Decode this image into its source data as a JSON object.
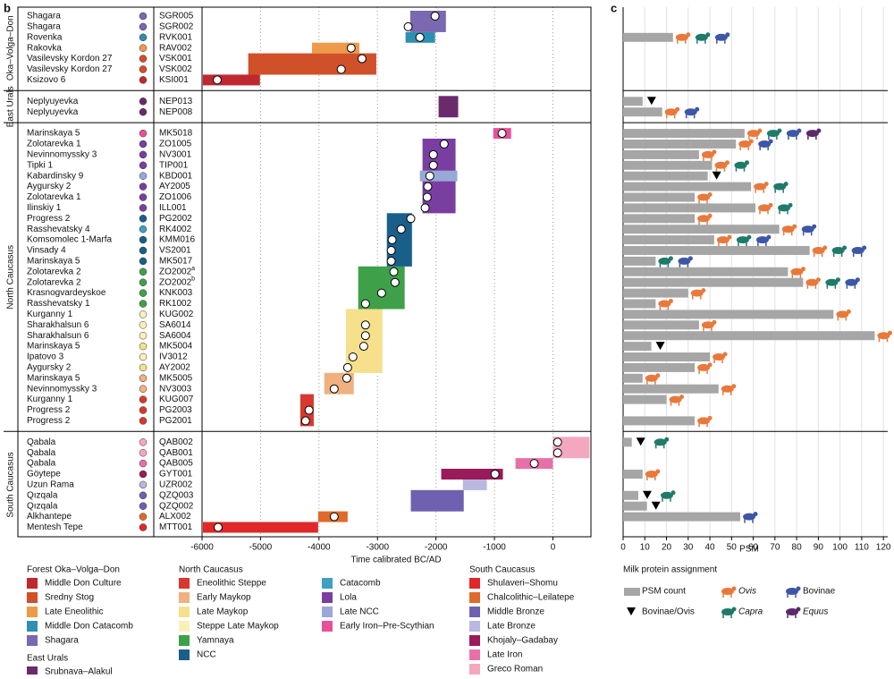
{
  "panel_b": "b",
  "panel_c": "c",
  "chart_data": [
    {
      "type": "range",
      "xlim": [
        -6000,
        650
      ],
      "xticks": [
        -6000,
        -5000,
        -4000,
        -3000,
        -2000,
        -1000,
        0
      ],
      "grid": true,
      "xlabel": "Time calibrated BC/AD",
      "groups": [
        {
          "name": "Oka–Volga–Don",
          "samples": [
            {
              "site": "Shagara",
              "id": "SGR005",
              "color": "#7a68b0",
              "date": -2015
            },
            {
              "site": "Shagara",
              "id": "SGR002",
              "color": "#7a68b0",
              "date": -2475
            },
            {
              "site": "Rovenka",
              "id": "RVK001",
              "color": "#2e8fb0",
              "date": -2275
            },
            {
              "site": "Rakovka",
              "id": "RAV002",
              "color": "#ee9a4a",
              "date": -3450
            },
            {
              "site": "Vasilevsky Kordon 27",
              "id": "VSK001",
              "color": "#d0502a",
              "date": -3265
            },
            {
              "site": "Vasilevsky Kordon 27",
              "id": "VSK002",
              "color": "#d0502a",
              "date": -3620
            },
            {
              "site": "Ksizovo 6",
              "id": "KSI001",
              "color": "#c0282f",
              "date": -5740
            }
          ]
        },
        {
          "name": "East Urals",
          "samples": [
            {
              "site": "Neplyuyevka",
              "id": "NEP013",
              "color": "#6b2a6e",
              "date": null
            },
            {
              "site": "Neplyuyevka",
              "id": "NEP008",
              "color": "#6b2a6e",
              "date": null
            }
          ]
        },
        {
          "name": "North Caucasus",
          "samples": [
            {
              "site": "Marinskaya 5",
              "id": "MK5018",
              "color": "#e8509a",
              "date": -870
            },
            {
              "site": "Zolotarevka 1",
              "id": "ZO1005",
              "color": "#7a3ea0",
              "date": -1860
            },
            {
              "site": "Nevinnomyssky 3",
              "id": "NV3001",
              "color": "#7a3ea0",
              "date": -2045
            },
            {
              "site": "Tipki 1",
              "id": "TIP001",
              "color": "#7a3ea0",
              "date": -2045
            },
            {
              "site": "Kabardinsky 9",
              "id": "KBD001",
              "color": "#98a8d8",
              "date": -2105
            },
            {
              "site": "Aygursky 2",
              "id": "AY2005",
              "color": "#7a3ea0",
              "date": -2140
            },
            {
              "site": "Zolotarevka 1",
              "id": "ZO1006",
              "color": "#7a3ea0",
              "date": -2150
            },
            {
              "site": "Ilinskiy 1",
              "id": "ILL001",
              "color": "#7a3ea0",
              "date": -2185
            },
            {
              "site": "Progress 2",
              "id": "PG2002",
              "color": "#1a5f8a",
              "date": -2430
            },
            {
              "site": "Rasshevatsky 4",
              "id": "RK4002",
              "color": "#3fa0c0",
              "date": -2595
            },
            {
              "site": "Komsomolec 1-Marfa",
              "id": "KMM016",
              "color": "#1a5f8a",
              "date": -2750
            },
            {
              "site": "Vinsady 4",
              "id": "VS2001",
              "color": "#1a5f8a",
              "date": -2765
            },
            {
              "site": "Marinskaya 5",
              "id": "MK5017",
              "color": "#1a5f8a",
              "date": -2765
            },
            {
              "site": "Zolotarevka 2",
              "id": "ZO2002",
              "sup": "a",
              "color": "#3fa04a",
              "date": -2720
            },
            {
              "site": "Zolotarevka 2",
              "id": "ZO2002",
              "sup": "b",
              "color": "#3fa04a",
              "date": -2700
            },
            {
              "site": "Krasnogvardeyskoe",
              "id": "KNK003",
              "color": "#3fa04a",
              "date": -2930
            },
            {
              "site": "Rasshevatsky 1",
              "id": "RK1002",
              "color": "#3fa04a",
              "date": -3205
            },
            {
              "site": "Kurganny 1",
              "id": "KUG002",
              "color": "#fbf0b8",
              "date": null
            },
            {
              "site": "Sharakhalsun 6",
              "id": "SA6014",
              "color": "#fbf0b8",
              "date": -3205
            },
            {
              "site": "Sharakhalsun 6",
              "id": "SA6004",
              "color": "#fbf0b8",
              "date": -3205
            },
            {
              "site": "Marinskaya 5",
              "id": "MK5004",
              "color": "#f6e08c",
              "date": -3235
            },
            {
              "site": "Ipatovo 3",
              "id": "IV3012",
              "color": "#fbf0b8",
              "date": -3420
            },
            {
              "site": "Aygursky 2",
              "id": "AY2002",
              "color": "#f6e08c",
              "date": -3510
            },
            {
              "site": "Marinskaya 5",
              "id": "MK5005",
              "color": "#f0b080",
              "date": -3525
            },
            {
              "site": "Nevinnomyssky 3",
              "id": "NV3003",
              "color": "#f0b080",
              "date": -3740
            },
            {
              "site": "Kurganny 1",
              "id": "KUG007",
              "color": "#d8382e",
              "date": null
            },
            {
              "site": "Progress 2",
              "id": "PG2003",
              "color": "#d8382e",
              "date": -4170
            },
            {
              "site": "Progress 2",
              "id": "PG2001",
              "color": "#d8382e",
              "date": -4230
            }
          ]
        },
        {
          "name": "South Caucasus",
          "samples": [
            {
              "site": "Qabala",
              "id": "QAB002",
              "color": "#f4a8c0",
              "date": 80
            },
            {
              "site": "Qabala",
              "id": "QAB001",
              "color": "#f4a8c0",
              "date": 80
            },
            {
              "site": "Qabala",
              "id": "QAB005",
              "color": "#e870a8",
              "date": -320
            },
            {
              "site": "Göytepe",
              "id": "GYT001",
              "color": "#9a1a5a",
              "date": -990
            },
            {
              "site": "Uzun Rama",
              "id": "UZR002",
              "color": "#b8b8e0",
              "date": null
            },
            {
              "site": "Qızqala",
              "id": "QZQ003",
              "color": "#7060b0",
              "date": null
            },
            {
              "site": "Qızqala",
              "id": "QZQ002",
              "color": "#7060b0",
              "date": null
            },
            {
              "site": "Alkhantepe",
              "id": "ALX002",
              "color": "#e06a2a",
              "date": -3740
            },
            {
              "site": "Mentesh Tepe",
              "id": "MTT001",
              "color": "#e02828",
              "date": -5725
            }
          ]
        }
      ],
      "legend": [
        {
          "title": "Forest Oka–Volga–Don",
          "items": [
            {
              "name": "Middle Don Culture",
              "color": "#c0282f",
              "spans": [
                {
                  "start": -5985,
                  "end": -5010,
                  "rows": [
                    6,
                    6
                  ]
                }
              ]
            },
            {
              "name": "Sredny Stog",
              "color": "#d0502a",
              "spans": [
                {
                  "start": -5210,
                  "end": -3020,
                  "rows": [
                    4,
                    5
                  ]
                }
              ]
            },
            {
              "name": "Late Eneolithic",
              "color": "#ee9a4a",
              "spans": [
                {
                  "start": -4120,
                  "end": -3310,
                  "rows": [
                    3,
                    3
                  ]
                }
              ]
            },
            {
              "name": "Middle Don Catacomb",
              "color": "#2e8fb0",
              "spans": [
                {
                  "start": -2520,
                  "end": -2015,
                  "rows": [
                    2,
                    2
                  ]
                }
              ]
            },
            {
              "name": "Shagara",
              "color": "#7a68b0",
              "spans": [
                {
                  "start": -2440,
                  "end": -1830,
                  "rows": [
                    0,
                    1
                  ]
                }
              ]
            }
          ]
        },
        {
          "title": "East Urals",
          "items": [
            {
              "name": "Srubnaya–Alakul",
              "color": "#6b2a6e",
              "spans": [
                {
                  "start": -1955,
                  "end": -1620,
                  "rows": [
                    7,
                    8
                  ]
                }
              ]
            }
          ]
        },
        {
          "title": "North Caucasus",
          "items": [
            {
              "name": "Eneolithic Steppe",
              "color": "#d8382e",
              "spans": [
                {
                  "start": -4320,
                  "end": -4090,
                  "rows": [
                    34,
                    36
                  ]
                }
              ]
            },
            {
              "name": "Early Maykop",
              "color": "#f0b080",
              "spans": [
                {
                  "start": -3910,
                  "end": -3405,
                  "rows": [
                    32,
                    33
                  ]
                }
              ]
            },
            {
              "name": "Late Maykop",
              "color": "#f6e08c",
              "spans": [
                {
                  "start": -3540,
                  "end": -2915,
                  "rows": [
                    26,
                    31
                  ]
                }
              ]
            },
            {
              "name": "Steppe Late Maykop",
              "color": "#fbf0b8",
              "spans": []
            },
            {
              "name": "Yamnaya",
              "color": "#3fa04a",
              "spans": [
                {
                  "start": -3330,
                  "end": -2535,
                  "rows": [
                    22,
                    25
                  ]
                }
              ]
            },
            {
              "name": "NCC",
              "color": "#1a5f8a",
              "spans": [
                {
                  "start": -2840,
                  "end": -2410,
                  "rows": [
                    17,
                    21
                  ]
                }
              ]
            },
            {
              "name": "Catacomb",
              "color": "#3fa0c0",
              "spans": []
            },
            {
              "name": "Lola",
              "color": "#7a3ea0",
              "spans": [
                {
                  "start": -2230,
                  "end": -1665,
                  "rows": [
                    10,
                    16
                  ]
                }
              ]
            },
            {
              "name": "Late NCC",
              "color": "#98a8d8",
              "spans": [
                {
                  "start": -2275,
                  "end": -1635,
                  "rows": [
                    13,
                    13
                  ]
                }
              ]
            },
            {
              "name": "Early Iron–Pre-Scythian",
              "color": "#e8509a",
              "spans": [
                {
                  "start": -1020,
                  "end": -715,
                  "rows": [
                    9,
                    9
                  ]
                }
              ]
            }
          ]
        },
        {
          "title": "South Caucasus",
          "items": [
            {
              "name": "Shulaveri–Shomu",
              "color": "#e02828",
              "spans": [
                {
                  "start": -5985,
                  "end": -4015,
                  "rows": [
                    45,
                    45
                  ]
                }
              ]
            },
            {
              "name": "Chalcolithic–Leilatepe",
              "color": "#e06a2a",
              "spans": [
                {
                  "start": -4015,
                  "end": -3510,
                  "rows": [
                    44,
                    44
                  ]
                }
              ]
            },
            {
              "name": "Middle Bronze",
              "color": "#7060b0",
              "spans": [
                {
                  "start": -2430,
                  "end": -1525,
                  "rows": [
                    42,
                    43
                  ]
                }
              ]
            },
            {
              "name": "Late Bronze",
              "color": "#b8b8e0",
              "spans": [
                {
                  "start": -1540,
                  "end": -1130,
                  "rows": [
                    41,
                    41
                  ]
                }
              ]
            },
            {
              "name": "Khojaly–Gadabay",
              "color": "#9a1a5a",
              "spans": [
                {
                  "start": -1910,
                  "end": -855,
                  "rows": [
                    40,
                    40
                  ]
                }
              ]
            },
            {
              "name": "Late Iron",
              "color": "#e870a8",
              "spans": [
                {
                  "start": -640,
                  "end": 0,
                  "rows": [
                    39,
                    39
                  ]
                }
              ]
            },
            {
              "name": "Greco Roman",
              "color": "#f4a8c0",
              "spans": [
                {
                  "start": 0,
                  "end": 625,
                  "rows": [
                    37,
                    38
                  ]
                }
              ]
            }
          ]
        }
      ]
    },
    {
      "type": "bar",
      "xlim": [
        0,
        122
      ],
      "xticks": [
        0,
        10,
        20,
        30,
        40,
        50,
        60,
        70,
        80,
        90,
        100,
        110,
        120
      ],
      "grid": true,
      "xlabel": "PSM",
      "color": "#a6a6a6",
      "values": [
        null,
        null,
        23,
        null,
        null,
        null,
        null,
        9,
        18,
        56,
        52,
        35,
        41,
        39,
        59,
        33,
        61,
        33,
        72,
        42,
        86,
        15,
        76,
        83,
        30,
        15,
        97,
        35,
        116,
        13,
        40,
        33,
        9,
        44,
        20,
        null,
        33,
        4,
        null,
        null,
        9,
        null,
        7,
        11,
        54,
        null
      ],
      "milk": [
        [],
        [],
        [
          "Ovis",
          "Capra",
          "Bovinae"
        ],
        [],
        [],
        [],
        [],
        [
          "Bovinae/Ovis"
        ],
        [
          "Ovis",
          "Bovinae"
        ],
        [
          "Ovis",
          "Capra",
          "Bovinae",
          "Equus"
        ],
        [
          "Ovis",
          "Bovinae"
        ],
        [
          "Ovis"
        ],
        [
          "Ovis",
          "Capra"
        ],
        [
          "Bovinae/Ovis"
        ],
        [
          "Ovis",
          "Capra"
        ],
        [
          "Ovis"
        ],
        [
          "Ovis",
          "Capra"
        ],
        [
          "Ovis"
        ],
        [
          "Ovis",
          "Bovinae"
        ],
        [
          "Ovis",
          "Capra",
          "Bovinae"
        ],
        [
          "Ovis",
          "Capra",
          "Bovinae"
        ],
        [
          "Capra",
          "Bovinae"
        ],
        [
          "Ovis"
        ],
        [
          "Ovis",
          "Capra",
          "Bovinae"
        ],
        [
          "Ovis"
        ],
        [
          "Ovis"
        ],
        [
          "Ovis"
        ],
        [
          "Ovis"
        ],
        [
          "Ovis"
        ],
        [
          "Bovinae/Ovis"
        ],
        [
          "Ovis"
        ],
        [
          "Ovis"
        ],
        [
          "Ovis"
        ],
        [
          "Ovis"
        ],
        [
          "Ovis"
        ],
        [],
        [
          "Ovis"
        ],
        [
          "Bovinae/Ovis",
          "Capra"
        ],
        [],
        [],
        [
          "Ovis"
        ],
        [],
        [
          "Bovinae/Ovis",
          "Capra"
        ],
        [
          "Bovinae/Ovis"
        ],
        [
          "Bovinae"
        ],
        []
      ],
      "legend_title": "Milk protein assignment",
      "legend": [
        {
          "name": "PSM count",
          "shape": "bar",
          "color": "#a6a6a6"
        },
        {
          "name": "Ovis",
          "shape": "animal",
          "color": "#e8793a",
          "italic": true
        },
        {
          "name": "Bovinae",
          "shape": "animal",
          "color": "#3d56a6"
        },
        {
          "name": "Bovinae/Ovis",
          "shape": "triangle",
          "color": "#000000"
        },
        {
          "name": "Capra",
          "shape": "animal",
          "color": "#1f7a6a",
          "italic": true
        },
        {
          "name": "Equus",
          "shape": "animal",
          "color": "#5a2a6a",
          "italic": true
        }
      ]
    }
  ]
}
